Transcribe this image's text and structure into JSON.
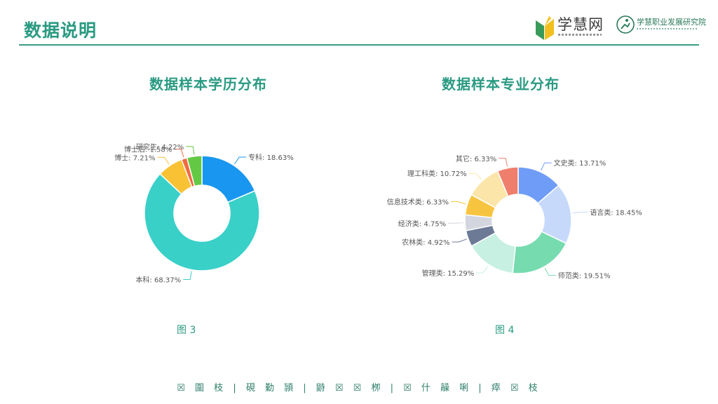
{
  "page": {
    "title": "数据说明"
  },
  "logos": {
    "logo1_name": "学慧网",
    "logo2_name": "学慧职业发展研究院"
  },
  "chart_data": [
    {
      "type": "pie",
      "style": "donut",
      "title": "数据样本学历分布",
      "caption": "图 3",
      "slices": [
        {
          "label": "专科: 18.63%",
          "value": 18.63,
          "color": "#1896f0"
        },
        {
          "label": "本科: 68.37%",
          "value": 68.37,
          "color": "#39d0c8"
        },
        {
          "label": "博士: 7.21%",
          "value": 7.21,
          "color": "#f9c234"
        },
        {
          "label": "博士后: 1.58%",
          "value": 1.58,
          "color": "#f06a43"
        },
        {
          "label": "研究生: 4.22%",
          "value": 4.22,
          "color": "#63c944"
        }
      ]
    },
    {
      "type": "pie",
      "style": "donut",
      "title": "数据样本专业分布",
      "caption": "图 4",
      "slices": [
        {
          "label": "文史类: 13.71%",
          "value": 13.71,
          "color": "#6f9cf6"
        },
        {
          "label": "语言类: 18.45%",
          "value": 18.45,
          "color": "#c6d9fb"
        },
        {
          "label": "师范类: 19.51%",
          "value": 19.51,
          "color": "#77dbb0"
        },
        {
          "label": "管理类: 15.29%",
          "value": 15.29,
          "color": "#c7f0e2"
        },
        {
          "label": "农林类: 4.92%",
          "value": 4.92,
          "color": "#6c7a96"
        },
        {
          "label": "经济类: 4.75%",
          "value": 4.75,
          "color": "#d3d6de"
        },
        {
          "label": "信息技术类: 6.33%",
          "value": 6.33,
          "color": "#f6c43f"
        },
        {
          "label": "理工科类: 10.72%",
          "value": 10.72,
          "color": "#fbe5a9"
        },
        {
          "label": "其它: 6.33%",
          "value": 6.33,
          "color": "#ef7e6c"
        }
      ]
    }
  ],
  "footer": {
    "text": "☒ 圍 枝 | 硯 勤 頴 | 鼭 ☒ ☒ 栁 | ☒ 什 髞 唎 | 瘁 ☒ 枝"
  }
}
